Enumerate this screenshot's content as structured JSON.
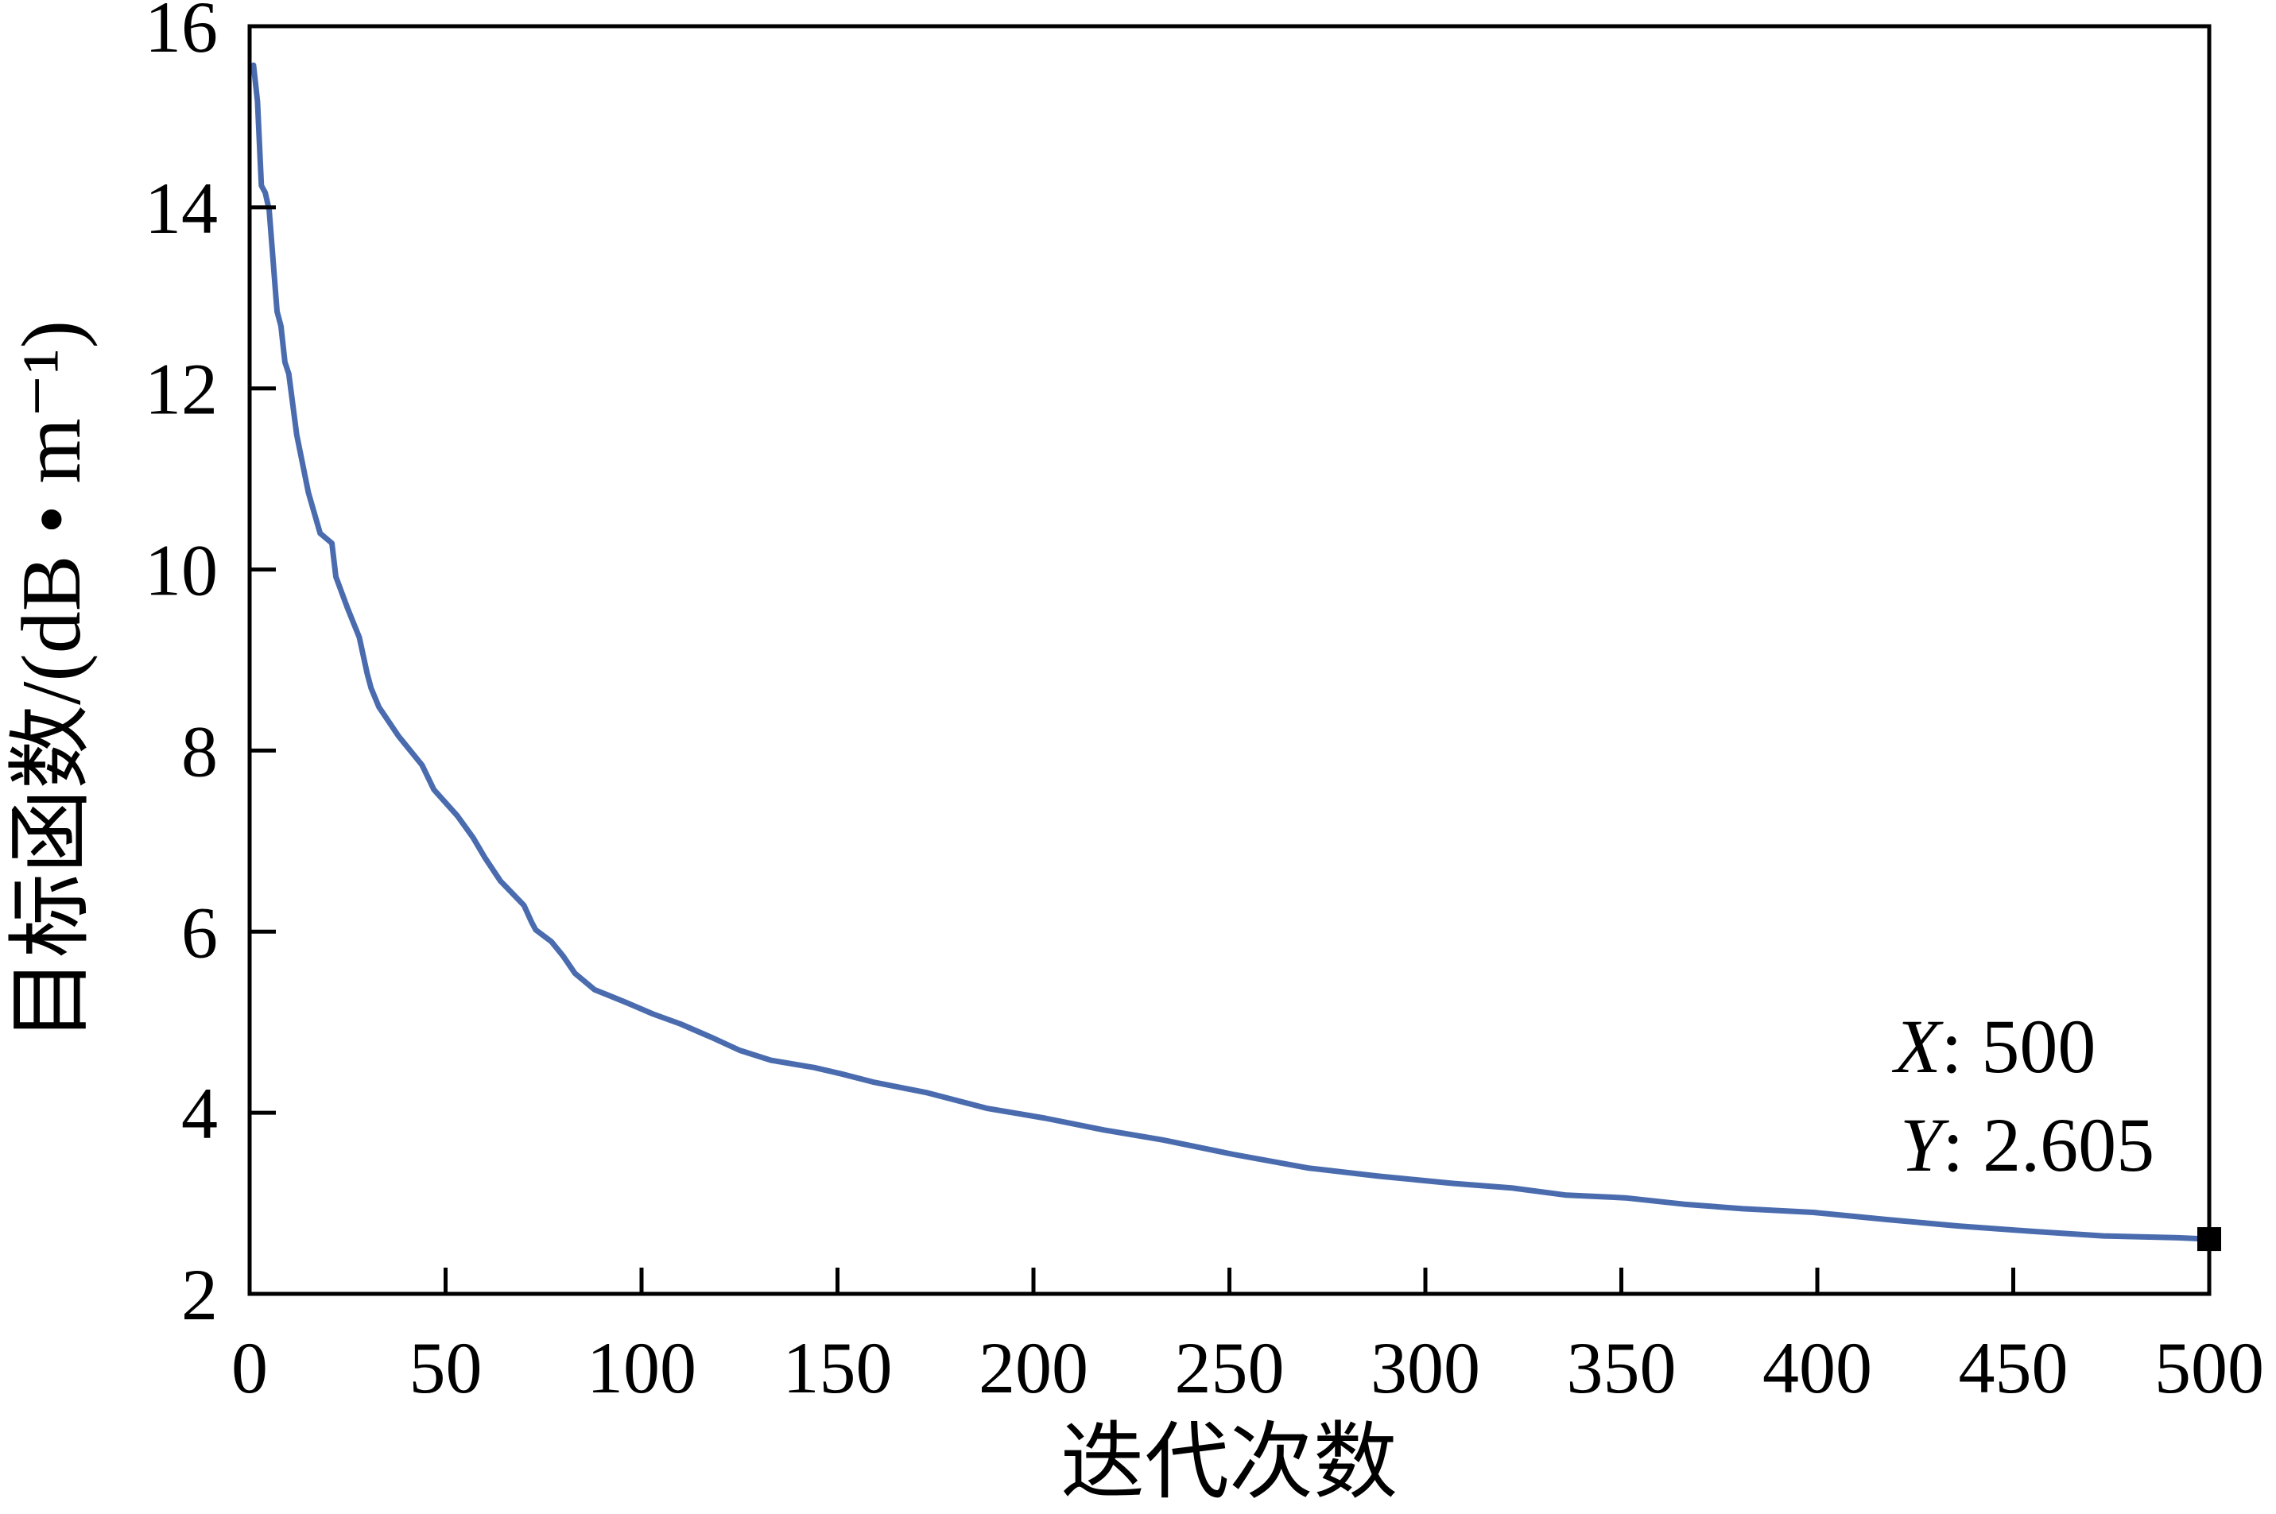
{
  "chart_data": {
    "type": "line",
    "title": "",
    "xlabel": "迭代次数",
    "ylabel": "目标函数/(dB • m⁻¹)",
    "xlim": [
      0,
      500
    ],
    "ylim": [
      2,
      16
    ],
    "xticks": [
      0,
      50,
      100,
      150,
      200,
      250,
      300,
      350,
      400,
      450,
      500
    ],
    "yticks": [
      2,
      4,
      6,
      8,
      10,
      12,
      14,
      16
    ],
    "grid": false,
    "series": [
      {
        "color": "#4a6caf",
        "x": [
          1,
          2,
          3,
          4,
          5,
          7,
          8,
          9,
          10,
          12,
          15,
          18,
          21,
          22,
          25,
          28,
          30,
          31,
          33,
          38,
          44,
          47,
          53,
          57,
          60,
          64,
          70,
          72,
          73,
          77,
          80,
          83,
          88,
          96,
          103,
          110,
          118,
          125,
          133,
          144,
          151,
          159,
          173,
          188,
          203,
          218,
          233,
          251,
          270,
          288,
          307,
          322,
          336,
          351,
          366,
          381,
          399,
          418,
          436,
          455,
          473,
          492,
          500
        ],
        "y": [
          15.57,
          15.17,
          14.24,
          14.16,
          13.97,
          12.85,
          12.69,
          12.29,
          12.16,
          11.49,
          10.85,
          10.4,
          10.29,
          9.92,
          9.57,
          9.25,
          8.85,
          8.69,
          8.48,
          8.16,
          7.84,
          7.57,
          7.28,
          7.04,
          6.82,
          6.56,
          6.29,
          6.1,
          6.02,
          5.89,
          5.73,
          5.54,
          5.36,
          5.22,
          5.09,
          4.98,
          4.83,
          4.69,
          4.58,
          4.5,
          4.43,
          4.34,
          4.22,
          4.05,
          3.94,
          3.81,
          3.7,
          3.54,
          3.39,
          3.3,
          3.22,
          3.17,
          3.09,
          3.06,
          2.99,
          2.94,
          2.9,
          2.82,
          2.75,
          2.69,
          2.64,
          2.62,
          2.605
        ]
      }
    ],
    "marker": {
      "x": 500,
      "y": 2.605,
      "color": "#000000"
    },
    "annotation": {
      "x_var": "X",
      "x_text": ": 500",
      "y_var": "Y",
      "y_text": ": 2.605"
    }
  }
}
